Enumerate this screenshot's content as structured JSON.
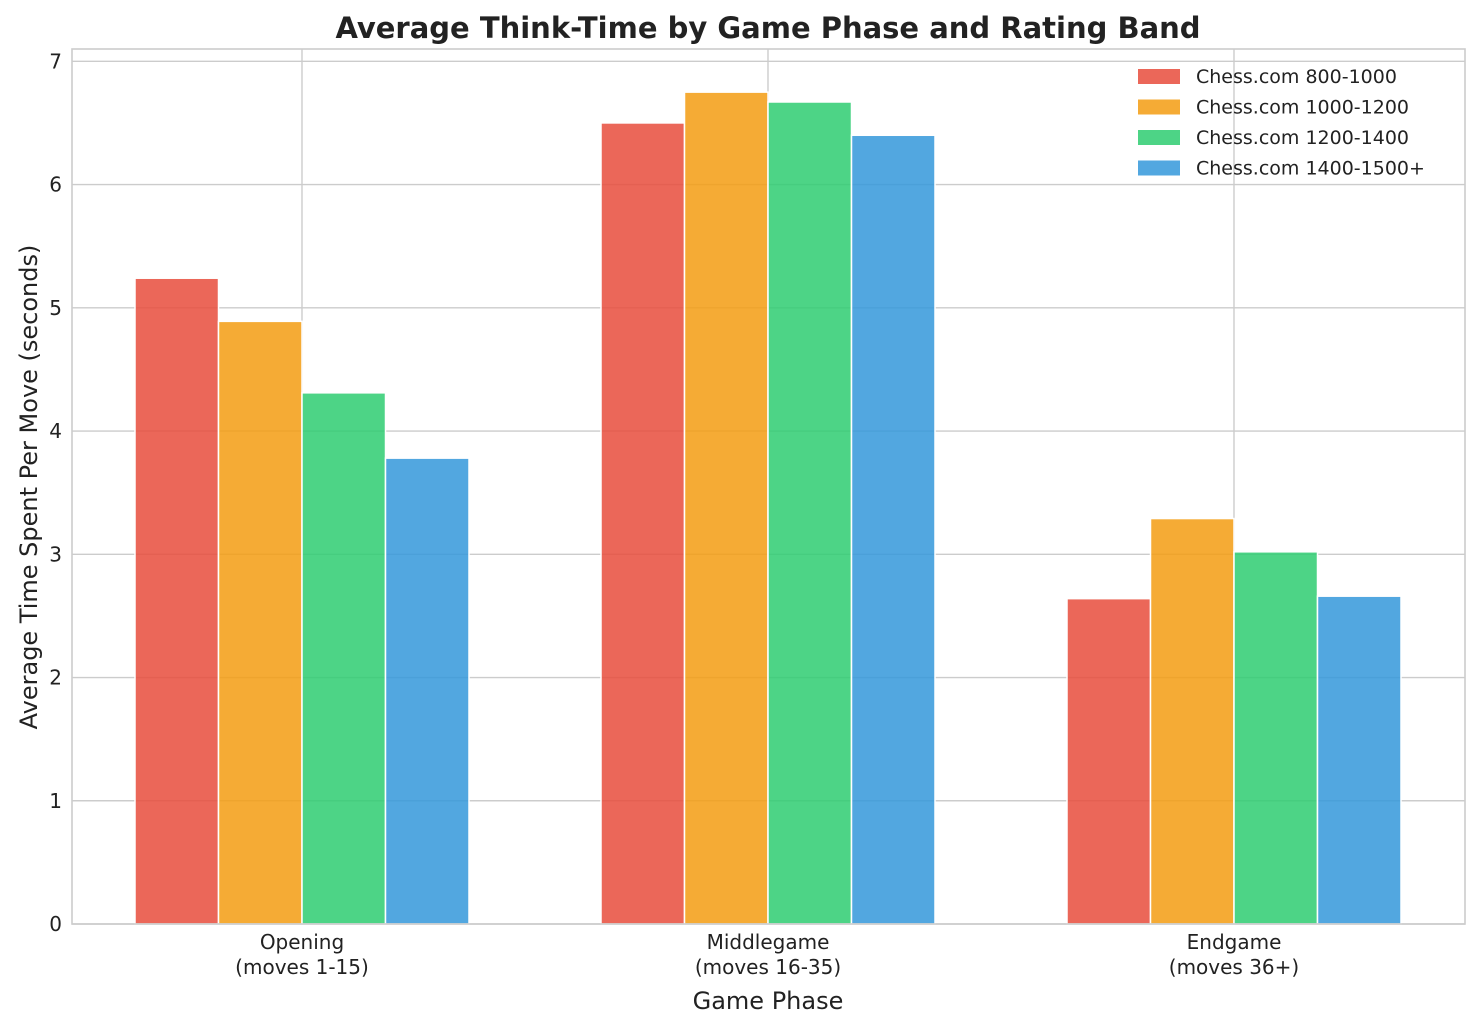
{
  "chart_data": {
    "type": "bar",
    "title": "Average Think-Time by Game Phase and Rating Band",
    "xlabel": "Game Phase",
    "ylabel": "Average Time Spent Per Move (seconds)",
    "ylim": [
      0,
      7.1
    ],
    "yticks": [
      "0",
      "1",
      "2",
      "3",
      "4",
      "5",
      "6",
      "7"
    ],
    "grid": true,
    "legend_position": "top-right",
    "categories": [
      [
        "Opening",
        "(moves 1-15)"
      ],
      [
        "Middlegame",
        "(moves 16-35)"
      ],
      [
        "Endgame",
        "(moves 36+)"
      ]
    ],
    "series": [
      {
        "name": "Chess.com 800-1000",
        "color": "#e74c3c",
        "values": [
          5.24,
          6.5,
          2.64
        ]
      },
      {
        "name": "Chess.com 1000-1200",
        "color": "#f39c12",
        "values": [
          4.89,
          6.75,
          3.29
        ]
      },
      {
        "name": "Chess.com 1200-1400",
        "color": "#2ecc71",
        "values": [
          4.31,
          6.67,
          3.02
        ]
      },
      {
        "name": "Chess.com 1400-1500+",
        "color": "#3498db",
        "values": [
          3.78,
          6.4,
          2.66
        ]
      }
    ]
  }
}
